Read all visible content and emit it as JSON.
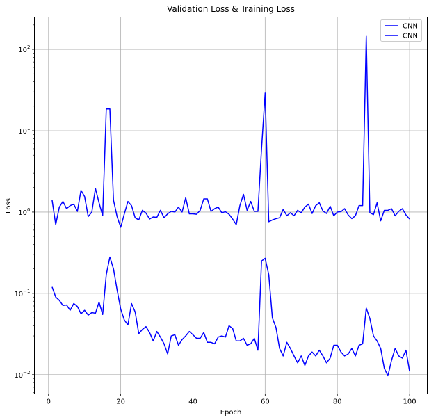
{
  "chart_data": {
    "type": "line",
    "title": "Validation Loss & Training Loss",
    "xlabel": "Epoch",
    "ylabel": "Loss",
    "yscale": "log",
    "xlim": [
      -3.9,
      104.9
    ],
    "ylim": [
      0.0058,
      250
    ],
    "xticks": [
      0,
      20,
      40,
      60,
      80,
      100
    ],
    "yticks": [
      {
        "value": 0.01,
        "base": "10",
        "exp": "−2"
      },
      {
        "value": 0.1,
        "base": "10",
        "exp": "−1"
      },
      {
        "value": 1,
        "base": "10",
        "exp": "0"
      },
      {
        "value": 10,
        "base": "10",
        "exp": "1"
      },
      {
        "value": 100,
        "base": "10",
        "exp": "2"
      }
    ],
    "grid": true,
    "legend_position": "top-right",
    "series": [
      {
        "name": "CNN",
        "color": "#0000ff",
        "x": [
          1,
          2,
          3,
          4,
          5,
          6,
          7,
          8,
          9,
          10,
          11,
          12,
          13,
          14,
          15,
          16,
          17,
          18,
          19,
          20,
          21,
          22,
          23,
          24,
          25,
          26,
          27,
          28,
          29,
          30,
          31,
          32,
          33,
          34,
          35,
          36,
          37,
          38,
          39,
          40,
          41,
          42,
          43,
          44,
          45,
          46,
          47,
          48,
          49,
          50,
          51,
          52,
          53,
          54,
          55,
          56,
          57,
          58,
          59,
          60,
          61,
          62,
          63,
          64,
          65,
          66,
          67,
          68,
          69,
          70,
          71,
          72,
          73,
          74,
          75,
          76,
          77,
          78,
          79,
          80,
          81,
          82,
          83,
          84,
          85,
          86,
          87,
          88,
          89,
          90,
          91,
          92,
          93,
          94,
          95,
          96,
          97,
          98,
          99,
          100
        ],
        "values": [
          1.4,
          0.7,
          1.15,
          1.35,
          1.1,
          1.2,
          1.25,
          1.02,
          1.85,
          1.55,
          0.88,
          1.0,
          1.95,
          1.3,
          0.9,
          18.5,
          18.5,
          1.4,
          0.88,
          0.65,
          0.95,
          1.35,
          1.2,
          0.85,
          0.8,
          1.05,
          0.97,
          0.82,
          0.87,
          0.86,
          1.05,
          0.85,
          0.95,
          1.02,
          1.0,
          1.15,
          1.0,
          1.5,
          0.95,
          0.95,
          0.94,
          1.05,
          1.45,
          1.45,
          1.02,
          1.1,
          1.15,
          0.98,
          1.01,
          0.94,
          0.82,
          0.7,
          1.2,
          1.65,
          1.05,
          1.35,
          1.02,
          1.02,
          6.0,
          29.0,
          0.76,
          0.8,
          0.83,
          0.85,
          1.08,
          0.9,
          0.98,
          0.9,
          1.05,
          0.98,
          1.15,
          1.25,
          0.96,
          1.2,
          1.3,
          1.03,
          0.96,
          1.18,
          0.9,
          1.0,
          1.01,
          1.1,
          0.92,
          0.83,
          0.9,
          1.2,
          1.2,
          145.0,
          0.98,
          0.93,
          1.3,
          0.78,
          1.05,
          1.05,
          1.1,
          0.9,
          1.02,
          1.1,
          0.92,
          0.82
        ]
      },
      {
        "name": "CNN",
        "color": "#0000ff",
        "x": [
          1,
          2,
          3,
          4,
          5,
          6,
          7,
          8,
          9,
          10,
          11,
          12,
          13,
          14,
          15,
          16,
          17,
          18,
          19,
          20,
          21,
          22,
          23,
          24,
          25,
          26,
          27,
          28,
          29,
          30,
          31,
          32,
          33,
          34,
          35,
          36,
          37,
          38,
          39,
          40,
          41,
          42,
          43,
          44,
          45,
          46,
          47,
          48,
          49,
          50,
          51,
          52,
          53,
          54,
          55,
          56,
          57,
          58,
          59,
          60,
          61,
          62,
          63,
          64,
          65,
          66,
          67,
          68,
          69,
          70,
          71,
          72,
          73,
          74,
          75,
          76,
          77,
          78,
          79,
          80,
          81,
          82,
          83,
          84,
          85,
          86,
          87,
          88,
          89,
          90,
          91,
          92,
          93,
          94,
          95,
          96,
          97,
          98,
          99,
          100
        ],
        "values": [
          0.12,
          0.09,
          0.082,
          0.071,
          0.072,
          0.062,
          0.075,
          0.069,
          0.056,
          0.062,
          0.054,
          0.058,
          0.057,
          0.078,
          0.055,
          0.17,
          0.28,
          0.2,
          0.11,
          0.064,
          0.047,
          0.041,
          0.075,
          0.059,
          0.032,
          0.036,
          0.039,
          0.033,
          0.026,
          0.034,
          0.029,
          0.024,
          0.018,
          0.03,
          0.031,
          0.023,
          0.027,
          0.03,
          0.034,
          0.031,
          0.028,
          0.028,
          0.033,
          0.025,
          0.025,
          0.024,
          0.029,
          0.03,
          0.029,
          0.04,
          0.037,
          0.026,
          0.026,
          0.028,
          0.023,
          0.024,
          0.028,
          0.02,
          0.25,
          0.27,
          0.17,
          0.05,
          0.038,
          0.021,
          0.017,
          0.025,
          0.021,
          0.017,
          0.014,
          0.017,
          0.013,
          0.017,
          0.019,
          0.017,
          0.02,
          0.017,
          0.014,
          0.016,
          0.023,
          0.023,
          0.019,
          0.017,
          0.018,
          0.021,
          0.017,
          0.023,
          0.024,
          0.066,
          0.049,
          0.03,
          0.026,
          0.021,
          0.012,
          0.0097,
          0.015,
          0.021,
          0.017,
          0.016,
          0.02,
          0.011
        ]
      }
    ]
  }
}
